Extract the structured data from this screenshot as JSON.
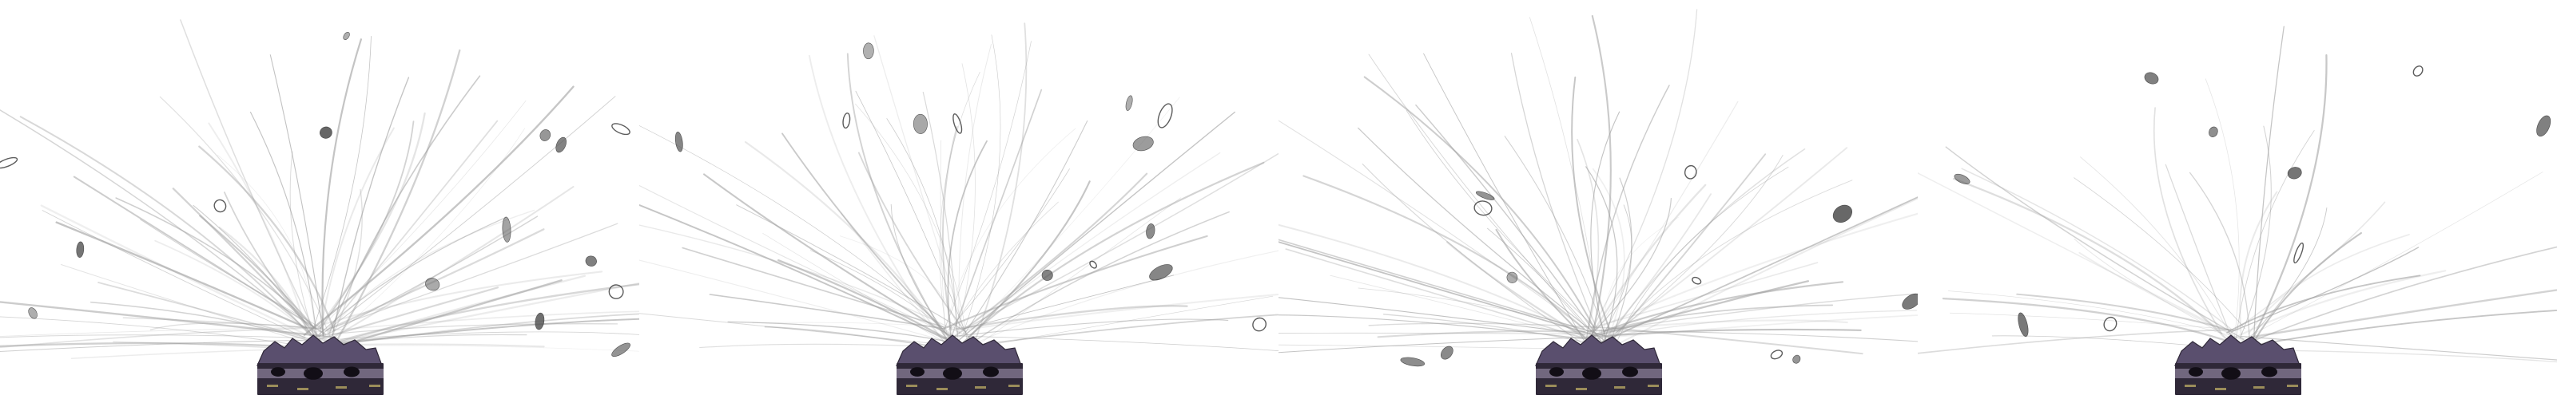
{
  "scene": {
    "description_free": true,
    "panel_count": 4,
    "frames": [
      {
        "id": "frame-1",
        "seed": 11,
        "streak_count": 70,
        "debris_count": 16
      },
      {
        "id": "frame-2",
        "seed": 23,
        "streak_count": 62,
        "debris_count": 14
      },
      {
        "id": "frame-3",
        "seed": 37,
        "streak_count": 64,
        "debris_count": 14
      },
      {
        "id": "frame-4",
        "seed": 53,
        "streak_count": 36,
        "debris_count": 12
      }
    ],
    "colors": {
      "background": "#ffffff",
      "streak": "#9a9a9a",
      "debris_fill": "#555555",
      "debris_stroke": "#333333",
      "base_dark": "#2f2838",
      "base_mid": "#5a4f6e",
      "base_light": "#a89bb8",
      "base_accent": "#c9b86a"
    },
    "icons": [
      "debris-fragment",
      "rubble-pile",
      "impact-base"
    ]
  }
}
